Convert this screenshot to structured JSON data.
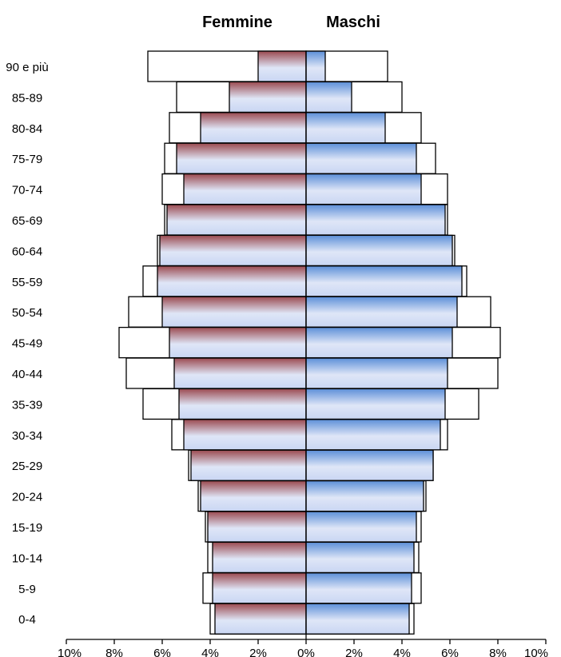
{
  "chart_data": {
    "type": "bar",
    "orientation": "horizontal",
    "layout": "population-pyramid",
    "side_titles": {
      "left": "Femmine",
      "right": "Maschi"
    },
    "categories": [
      "0-4",
      "5-9",
      "10-14",
      "15-19",
      "20-24",
      "25-29",
      "30-34",
      "35-39",
      "40-44",
      "45-49",
      "50-54",
      "55-59",
      "60-64",
      "65-69",
      "70-74",
      "75-79",
      "80-84",
      "85-89",
      "90 e più"
    ],
    "x_ticks": [
      "10%",
      "8%",
      "6%",
      "4%",
      "2%",
      "0%",
      "2%",
      "4%",
      "6%",
      "8%",
      "10%"
    ],
    "xlim": [
      -10,
      10
    ],
    "series": [
      {
        "side": "female",
        "values": [
          3.8,
          3.9,
          3.9,
          4.1,
          4.4,
          4.8,
          5.1,
          5.3,
          5.5,
          5.7,
          6.0,
          6.2,
          6.1,
          5.8,
          5.1,
          5.4,
          4.4,
          3.2,
          2.0
        ]
      },
      {
        "side": "female",
        "values": [
          4.0,
          4.3,
          4.1,
          4.2,
          4.5,
          4.9,
          5.6,
          6.8,
          7.5,
          7.8,
          7.4,
          6.8,
          6.2,
          5.9,
          6.0,
          5.9,
          5.7,
          5.4,
          6.6
        ]
      },
      {
        "side": "male",
        "values": [
          4.3,
          4.4,
          4.5,
          4.6,
          4.9,
          5.3,
          5.6,
          5.8,
          5.9,
          6.1,
          6.3,
          6.5,
          6.1,
          5.8,
          4.8,
          4.6,
          3.3,
          1.9,
          0.8
        ]
      },
      {
        "side": "male",
        "values": [
          4.5,
          4.8,
          4.7,
          4.8,
          5.0,
          5.3,
          5.9,
          7.2,
          8.0,
          8.1,
          7.7,
          6.7,
          6.2,
          5.9,
          5.9,
          5.4,
          4.8,
          4.0,
          3.4
        ]
      }
    ],
    "colors": {
      "female_gradient_top": "#9b4a50",
      "female_gradient_bottom": "#dfe6f7",
      "male_gradient_top": "#5c8fd8",
      "male_gradient_bottom": "#dfe6f7",
      "outline": "#000000"
    },
    "grid": false,
    "legend": "none"
  }
}
